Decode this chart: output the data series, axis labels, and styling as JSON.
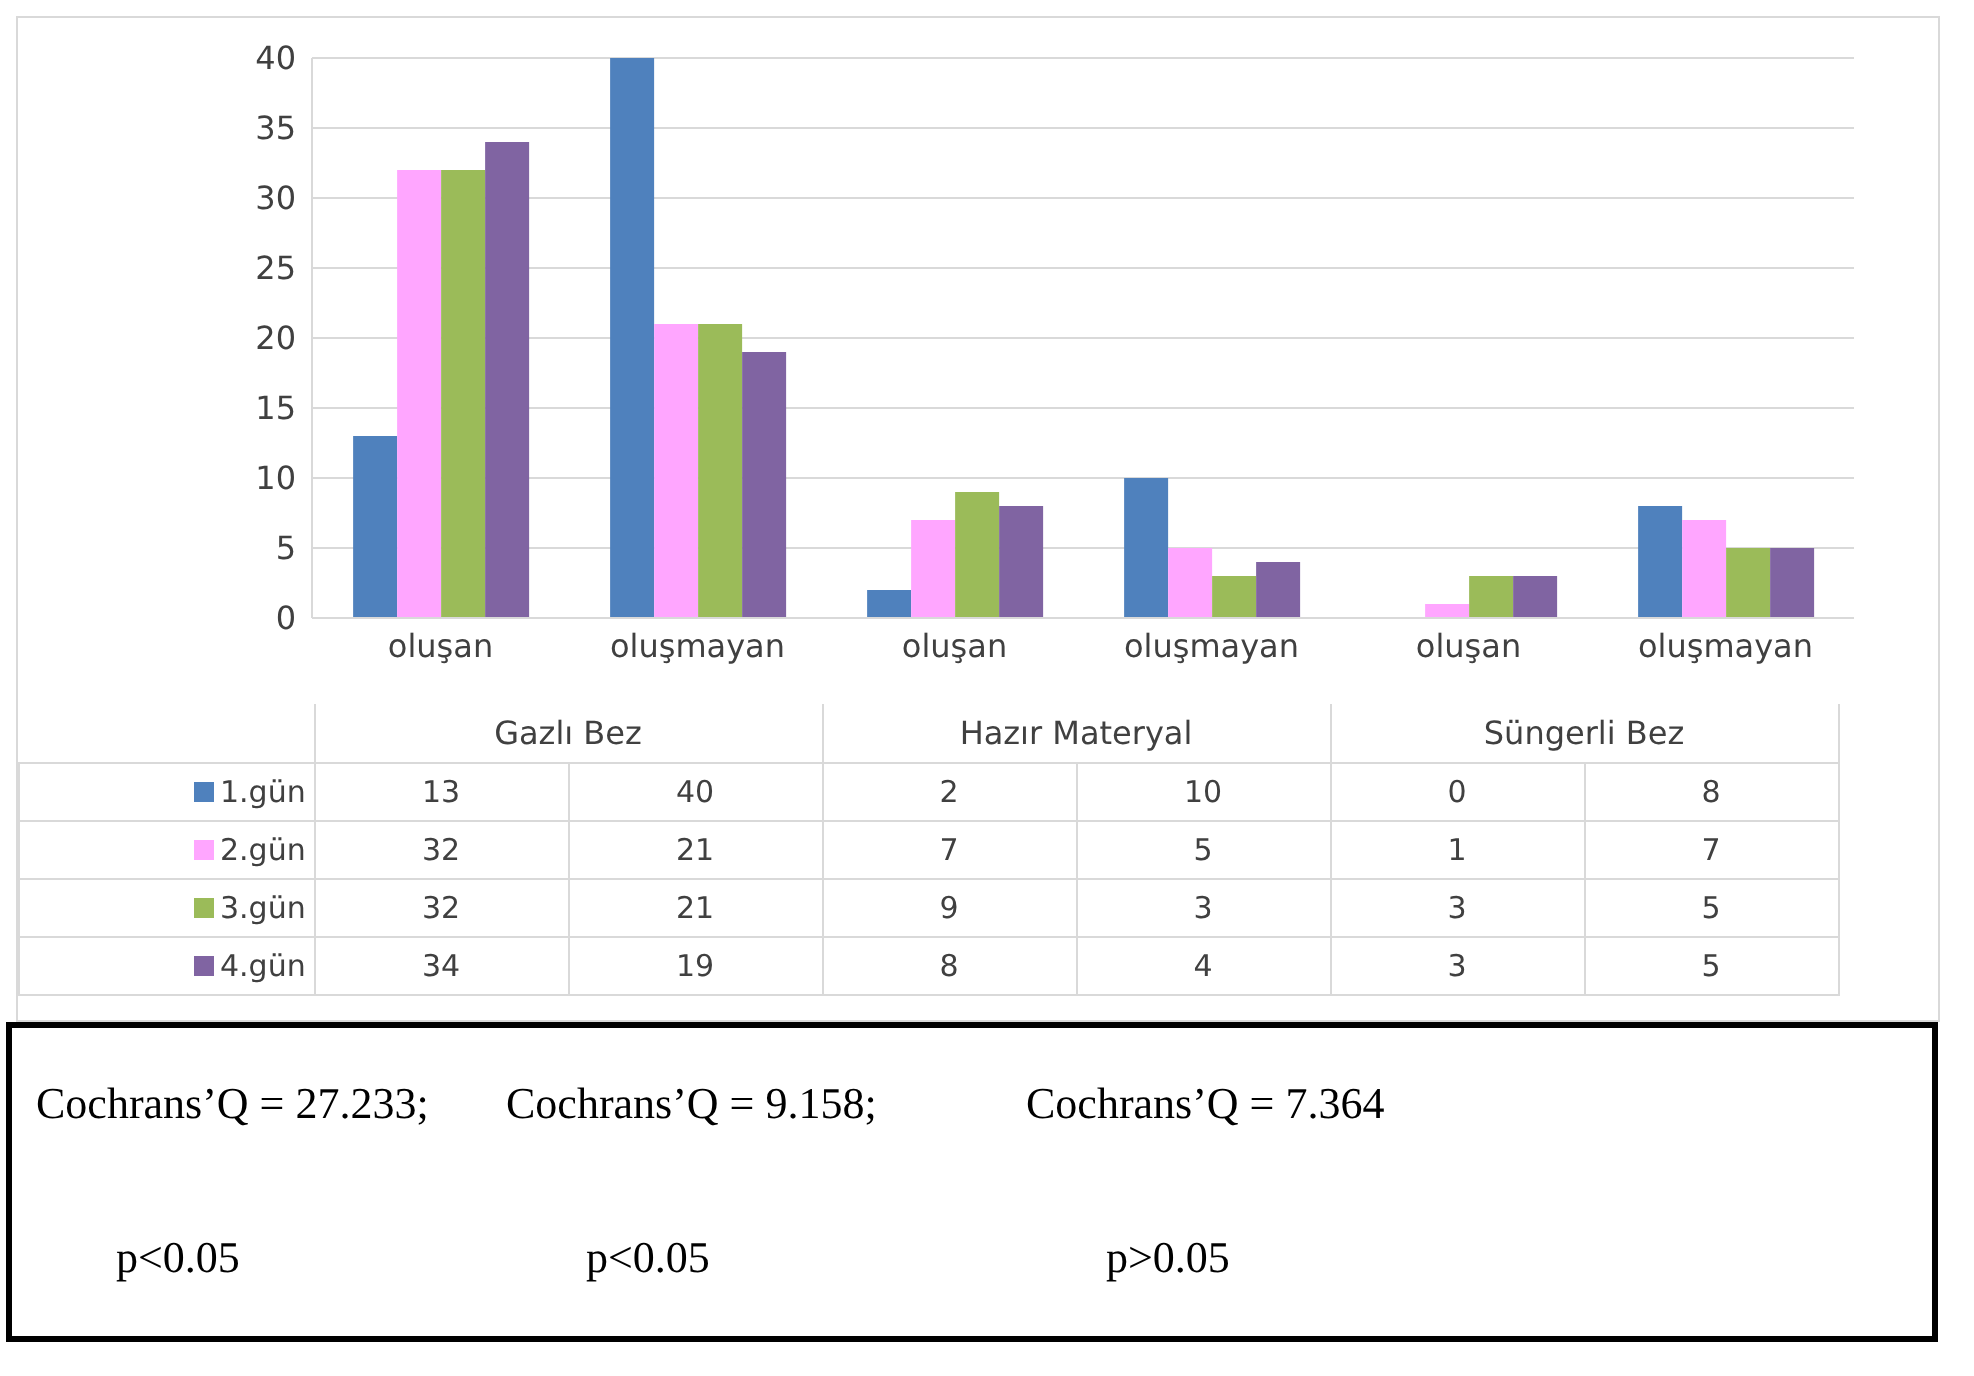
{
  "chart_data": {
    "type": "bar",
    "categories": [
      "oluşan",
      "oluşmayan",
      "oluşan",
      "oluşmayan",
      "oluşan",
      "oluşmayan"
    ],
    "series": [
      {
        "name": "1.gün",
        "color": "#4f81bd",
        "values": [
          13,
          40,
          2,
          10,
          0,
          8
        ]
      },
      {
        "name": "2.gün",
        "color": "#ffa6ff",
        "values": [
          32,
          21,
          7,
          5,
          1,
          7
        ]
      },
      {
        "name": "3.gün",
        "color": "#9bbb59",
        "values": [
          32,
          21,
          9,
          3,
          3,
          5
        ]
      },
      {
        "name": "4.gün",
        "color": "#8064a2",
        "values": [
          34,
          19,
          8,
          4,
          3,
          5
        ]
      }
    ],
    "ylim": [
      0,
      40
    ],
    "yticks": [
      0,
      5,
      10,
      15,
      20,
      25,
      30,
      35,
      40
    ],
    "grid": "y",
    "legend": "bottom",
    "data_labels": true,
    "annotations": [
      "Gazlı Bez",
      "Hazır Materyal",
      "Süngerli Bez",
      "Cochrans’Q = 27.233;",
      "Cochrans’Q = 9.158;",
      "Cochrans’Q = 7.364",
      "p<0.05",
      "p<0.05",
      "p>0.05"
    ]
  }
}
